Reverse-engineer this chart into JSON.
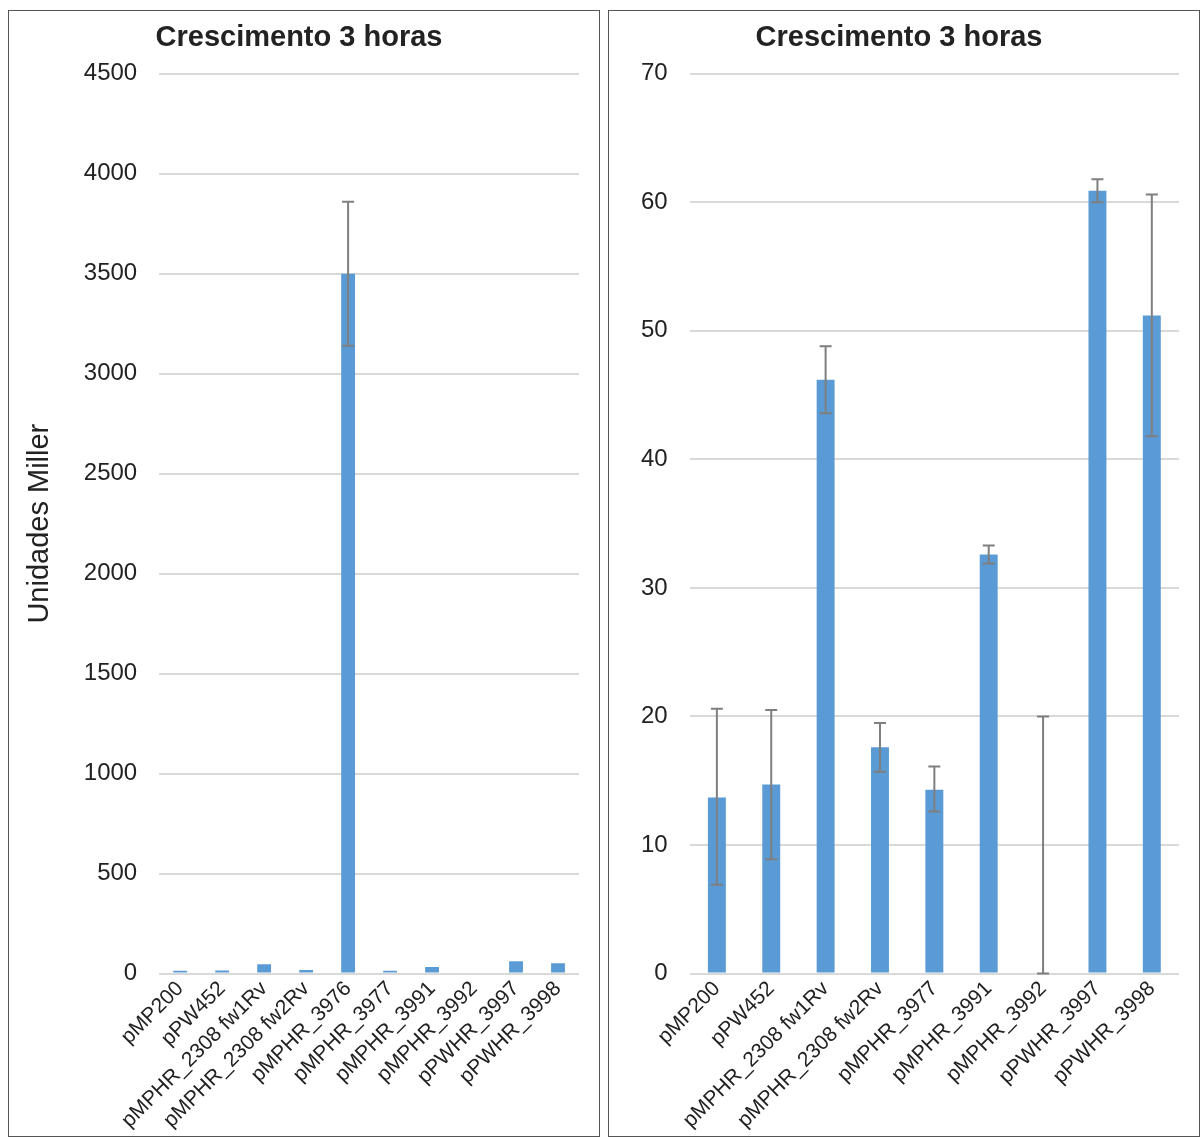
{
  "chart_data": [
    {
      "type": "bar",
      "title": "Crescimento 3 horas",
      "ylabel": "Unidades Miller",
      "categories": [
        "pMP200",
        "pPW452",
        "pMPHR_2308 fw1Rv",
        "pMPHR_2308 fw2Rv",
        "pMPHR_3976",
        "pMPHR_3977",
        "pMPHR_3991",
        "pMPHR_3992",
        "pPWHR_3997",
        "pPWHR_3998"
      ],
      "values": [
        14,
        15,
        46,
        18,
        3500,
        14,
        33,
        0,
        61,
        51
      ],
      "errors": [
        null,
        null,
        null,
        null,
        [
          3140,
          3860
        ],
        null,
        null,
        null,
        null,
        null
      ],
      "color": "#5b9bd5",
      "ylim": [
        0,
        4500
      ],
      "yticks": [
        0,
        500,
        1000,
        1500,
        2000,
        2500,
        3000,
        3500,
        4000,
        4500
      ],
      "grid": "y"
    },
    {
      "type": "bar",
      "title": "Crescimento 3 horas",
      "categories": [
        "pMP200",
        "pPW452",
        "pMPHR_2308 fw1Rv",
        "pMPHR_2308 fw2Rv",
        "pMPHR_3977",
        "pMPHR_3991",
        "pMPHR_3992",
        "pPWHR_3997",
        "pPWHR_3998"
      ],
      "values": [
        13.7,
        14.7,
        46.2,
        17.6,
        14.3,
        32.6,
        0,
        60.9,
        51.2
      ],
      "errors": [
        [
          6.9,
          20.6
        ],
        [
          8.9,
          20.5
        ],
        [
          43.6,
          48.8
        ],
        [
          15.7,
          19.5
        ],
        [
          12.6,
          16.1
        ],
        [
          31.9,
          33.3
        ],
        [
          0,
          20
        ],
        [
          60,
          61.8
        ],
        [
          41.8,
          60.6
        ]
      ],
      "color": "#5b9bd5",
      "ylim": [
        0,
        70
      ],
      "yticks": [
        0,
        10,
        20,
        30,
        40,
        50,
        60,
        70
      ],
      "grid": "y"
    }
  ]
}
